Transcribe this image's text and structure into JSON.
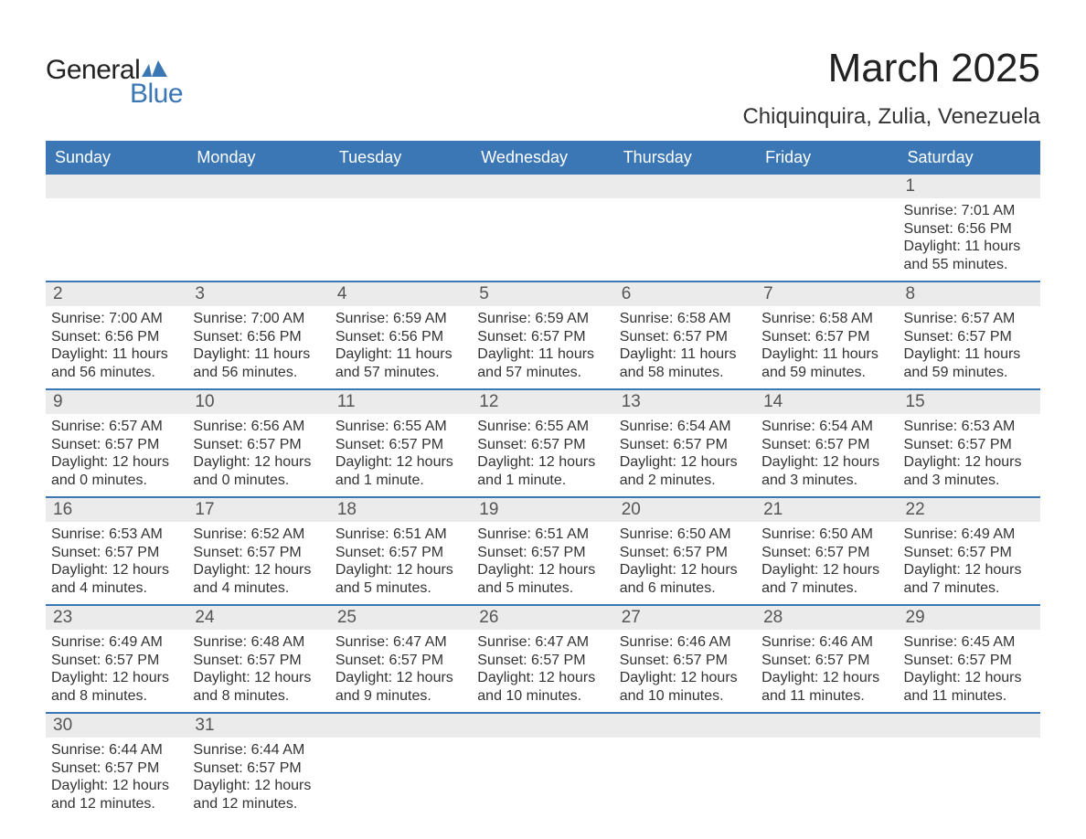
{
  "logo": {
    "word1": "General",
    "word2": "Blue",
    "icon_color": "#3b76b5"
  },
  "title": "March 2025",
  "location": "Chiquinquira, Zulia, Venezuela",
  "header_bg": "#3b76b5",
  "strip_bg": "#ebebeb",
  "divider_color": "#3b76b5",
  "text_color": "#333333",
  "weekdays": [
    "Sunday",
    "Monday",
    "Tuesday",
    "Wednesday",
    "Thursday",
    "Friday",
    "Saturday"
  ],
  "weeks": [
    {
      "nums": [
        "",
        "",
        "",
        "",
        "",
        "",
        "1"
      ],
      "cells": [
        null,
        null,
        null,
        null,
        null,
        null,
        {
          "sunrise": "Sunrise: 7:01 AM",
          "sunset": "Sunset: 6:56 PM",
          "dl1": "Daylight: 11 hours",
          "dl2": "and 55 minutes."
        }
      ]
    },
    {
      "nums": [
        "2",
        "3",
        "4",
        "5",
        "6",
        "7",
        "8"
      ],
      "cells": [
        {
          "sunrise": "Sunrise: 7:00 AM",
          "sunset": "Sunset: 6:56 PM",
          "dl1": "Daylight: 11 hours",
          "dl2": "and 56 minutes."
        },
        {
          "sunrise": "Sunrise: 7:00 AM",
          "sunset": "Sunset: 6:56 PM",
          "dl1": "Daylight: 11 hours",
          "dl2": "and 56 minutes."
        },
        {
          "sunrise": "Sunrise: 6:59 AM",
          "sunset": "Sunset: 6:56 PM",
          "dl1": "Daylight: 11 hours",
          "dl2": "and 57 minutes."
        },
        {
          "sunrise": "Sunrise: 6:59 AM",
          "sunset": "Sunset: 6:57 PM",
          "dl1": "Daylight: 11 hours",
          "dl2": "and 57 minutes."
        },
        {
          "sunrise": "Sunrise: 6:58 AM",
          "sunset": "Sunset: 6:57 PM",
          "dl1": "Daylight: 11 hours",
          "dl2": "and 58 minutes."
        },
        {
          "sunrise": "Sunrise: 6:58 AM",
          "sunset": "Sunset: 6:57 PM",
          "dl1": "Daylight: 11 hours",
          "dl2": "and 59 minutes."
        },
        {
          "sunrise": "Sunrise: 6:57 AM",
          "sunset": "Sunset: 6:57 PM",
          "dl1": "Daylight: 11 hours",
          "dl2": "and 59 minutes."
        }
      ]
    },
    {
      "nums": [
        "9",
        "10",
        "11",
        "12",
        "13",
        "14",
        "15"
      ],
      "cells": [
        {
          "sunrise": "Sunrise: 6:57 AM",
          "sunset": "Sunset: 6:57 PM",
          "dl1": "Daylight: 12 hours",
          "dl2": "and 0 minutes."
        },
        {
          "sunrise": "Sunrise: 6:56 AM",
          "sunset": "Sunset: 6:57 PM",
          "dl1": "Daylight: 12 hours",
          "dl2": "and 0 minutes."
        },
        {
          "sunrise": "Sunrise: 6:55 AM",
          "sunset": "Sunset: 6:57 PM",
          "dl1": "Daylight: 12 hours",
          "dl2": "and 1 minute."
        },
        {
          "sunrise": "Sunrise: 6:55 AM",
          "sunset": "Sunset: 6:57 PM",
          "dl1": "Daylight: 12 hours",
          "dl2": "and 1 minute."
        },
        {
          "sunrise": "Sunrise: 6:54 AM",
          "sunset": "Sunset: 6:57 PM",
          "dl1": "Daylight: 12 hours",
          "dl2": "and 2 minutes."
        },
        {
          "sunrise": "Sunrise: 6:54 AM",
          "sunset": "Sunset: 6:57 PM",
          "dl1": "Daylight: 12 hours",
          "dl2": "and 3 minutes."
        },
        {
          "sunrise": "Sunrise: 6:53 AM",
          "sunset": "Sunset: 6:57 PM",
          "dl1": "Daylight: 12 hours",
          "dl2": "and 3 minutes."
        }
      ]
    },
    {
      "nums": [
        "16",
        "17",
        "18",
        "19",
        "20",
        "21",
        "22"
      ],
      "cells": [
        {
          "sunrise": "Sunrise: 6:53 AM",
          "sunset": "Sunset: 6:57 PM",
          "dl1": "Daylight: 12 hours",
          "dl2": "and 4 minutes."
        },
        {
          "sunrise": "Sunrise: 6:52 AM",
          "sunset": "Sunset: 6:57 PM",
          "dl1": "Daylight: 12 hours",
          "dl2": "and 4 minutes."
        },
        {
          "sunrise": "Sunrise: 6:51 AM",
          "sunset": "Sunset: 6:57 PM",
          "dl1": "Daylight: 12 hours",
          "dl2": "and 5 minutes."
        },
        {
          "sunrise": "Sunrise: 6:51 AM",
          "sunset": "Sunset: 6:57 PM",
          "dl1": "Daylight: 12 hours",
          "dl2": "and 5 minutes."
        },
        {
          "sunrise": "Sunrise: 6:50 AM",
          "sunset": "Sunset: 6:57 PM",
          "dl1": "Daylight: 12 hours",
          "dl2": "and 6 minutes."
        },
        {
          "sunrise": "Sunrise: 6:50 AM",
          "sunset": "Sunset: 6:57 PM",
          "dl1": "Daylight: 12 hours",
          "dl2": "and 7 minutes."
        },
        {
          "sunrise": "Sunrise: 6:49 AM",
          "sunset": "Sunset: 6:57 PM",
          "dl1": "Daylight: 12 hours",
          "dl2": "and 7 minutes."
        }
      ]
    },
    {
      "nums": [
        "23",
        "24",
        "25",
        "26",
        "27",
        "28",
        "29"
      ],
      "cells": [
        {
          "sunrise": "Sunrise: 6:49 AM",
          "sunset": "Sunset: 6:57 PM",
          "dl1": "Daylight: 12 hours",
          "dl2": "and 8 minutes."
        },
        {
          "sunrise": "Sunrise: 6:48 AM",
          "sunset": "Sunset: 6:57 PM",
          "dl1": "Daylight: 12 hours",
          "dl2": "and 8 minutes."
        },
        {
          "sunrise": "Sunrise: 6:47 AM",
          "sunset": "Sunset: 6:57 PM",
          "dl1": "Daylight: 12 hours",
          "dl2": "and 9 minutes."
        },
        {
          "sunrise": "Sunrise: 6:47 AM",
          "sunset": "Sunset: 6:57 PM",
          "dl1": "Daylight: 12 hours",
          "dl2": "and 10 minutes."
        },
        {
          "sunrise": "Sunrise: 6:46 AM",
          "sunset": "Sunset: 6:57 PM",
          "dl1": "Daylight: 12 hours",
          "dl2": "and 10 minutes."
        },
        {
          "sunrise": "Sunrise: 6:46 AM",
          "sunset": "Sunset: 6:57 PM",
          "dl1": "Daylight: 12 hours",
          "dl2": "and 11 minutes."
        },
        {
          "sunrise": "Sunrise: 6:45 AM",
          "sunset": "Sunset: 6:57 PM",
          "dl1": "Daylight: 12 hours",
          "dl2": "and 11 minutes."
        }
      ]
    },
    {
      "nums": [
        "30",
        "31",
        "",
        "",
        "",
        "",
        ""
      ],
      "cells": [
        {
          "sunrise": "Sunrise: 6:44 AM",
          "sunset": "Sunset: 6:57 PM",
          "dl1": "Daylight: 12 hours",
          "dl2": "and 12 minutes."
        },
        {
          "sunrise": "Sunrise: 6:44 AM",
          "sunset": "Sunset: 6:57 PM",
          "dl1": "Daylight: 12 hours",
          "dl2": "and 12 minutes."
        },
        null,
        null,
        null,
        null,
        null
      ]
    }
  ]
}
